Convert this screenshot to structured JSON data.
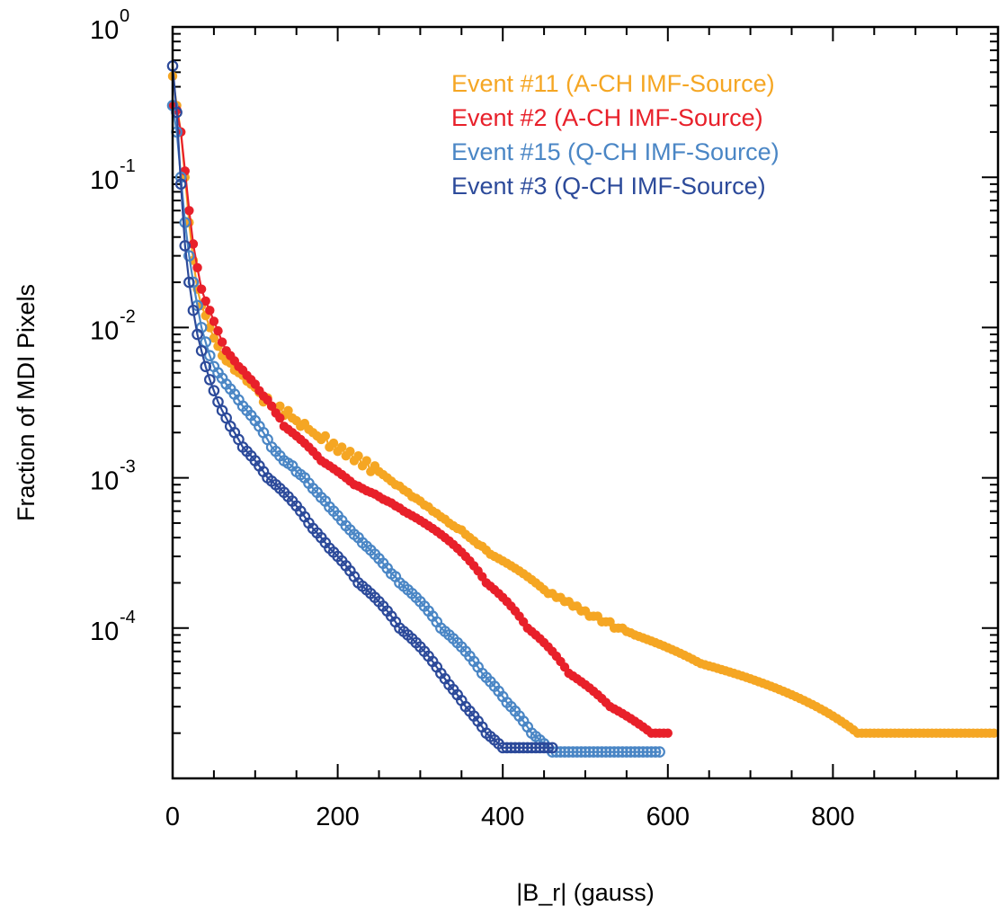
{
  "chart_data": {
    "type": "line",
    "title": "",
    "xlabel": "|B_r| (gauss)",
    "ylabel": "Fraction of MDI Pixels",
    "xlim": [
      0,
      1000
    ],
    "ylim": [
      1e-05,
      1
    ],
    "yscale": "log",
    "x_ticks": [
      "0",
      "200",
      "400",
      "600",
      "800"
    ],
    "y_ticks": [
      {
        "base": "10",
        "exp": "0"
      },
      {
        "base": "10",
        "exp": "-1"
      },
      {
        "base": "10",
        "exp": "-2"
      },
      {
        "base": "10",
        "exp": "-3"
      },
      {
        "base": "10",
        "exp": "-4"
      }
    ],
    "legend_position": "top-right",
    "series": [
      {
        "name": "Event #11 (A-CH IMF-Source)",
        "color": "#f5a623",
        "marker": "filled-circle",
        "x": [
          0,
          5,
          10,
          15,
          20,
          25,
          30,
          35,
          40,
          45,
          50,
          55,
          60,
          65,
          70,
          75,
          80,
          85,
          90,
          95,
          100,
          105,
          110,
          115,
          120,
          125,
          130,
          135,
          140,
          145,
          150,
          155,
          160,
          165,
          170,
          175,
          180,
          185,
          190,
          195,
          200,
          205,
          210,
          215,
          220,
          225,
          230,
          235,
          240,
          245,
          250,
          255,
          260,
          265,
          270,
          275,
          280,
          285,
          290,
          295,
          300,
          305,
          310,
          315,
          320,
          325,
          330,
          335,
          340,
          345,
          350,
          355,
          360,
          365,
          370,
          375,
          380,
          385,
          390,
          395,
          400,
          405,
          410,
          415,
          420,
          425,
          430,
          435,
          440,
          445,
          450,
          455,
          460,
          465,
          470,
          475,
          480,
          485,
          490,
          495,
          500,
          505,
          510,
          515,
          520,
          525,
          530,
          535,
          540,
          545,
          550,
          555,
          560,
          565,
          570,
          575,
          580,
          585,
          590,
          595,
          600,
          605,
          610,
          615,
          620,
          625,
          630,
          635,
          640,
          645,
          650,
          655,
          660,
          665,
          670,
          675,
          680,
          685,
          690,
          695,
          700,
          705,
          710,
          715,
          720,
          725,
          730,
          735,
          740,
          745,
          750,
          755,
          760,
          765,
          770,
          775,
          780,
          785,
          790,
          795,
          800,
          805,
          810,
          815,
          820,
          825,
          830,
          835,
          840,
          845,
          850,
          855,
          860,
          865,
          870,
          875,
          880,
          885,
          890,
          895,
          900,
          905,
          910,
          915,
          920,
          925,
          930,
          935,
          940,
          945,
          950,
          955,
          960,
          965,
          970,
          975,
          980,
          985,
          990,
          995
        ],
        "y": [
          0.47,
          0.3,
          0.2,
          0.1,
          0.05,
          0.028,
          0.018,
          0.014,
          0.012,
          0.01,
          0.0085,
          0.0075,
          0.0065,
          0.006,
          0.0058,
          0.0052,
          0.005,
          0.0048,
          0.0044,
          0.0042,
          0.004,
          0.0037,
          0.0032,
          0.0034,
          0.003,
          0.0028,
          0.003,
          0.0026,
          0.0028,
          0.0025,
          0.0024,
          0.0022,
          0.0023,
          0.0021,
          0.002,
          0.0019,
          0.0018,
          0.0019,
          0.0016,
          0.0017,
          0.0015,
          0.0016,
          0.0014,
          0.0015,
          0.0013,
          0.0014,
          0.0012,
          0.0013,
          0.0011,
          0.0012,
          0.0011,
          0.00105,
          0.001,
          0.00095,
          0.0009,
          0.00088,
          0.00083,
          0.0008,
          0.00075,
          0.00073,
          0.0007,
          0.00066,
          0.00064,
          0.0006,
          0.00058,
          0.00055,
          0.00053,
          0.0005,
          0.00048,
          0.00046,
          0.00045,
          0.00042,
          0.0004,
          0.00038,
          0.00036,
          0.00035,
          0.00033,
          0.00031,
          0.0003,
          0.00029,
          0.00028,
          0.00027,
          0.00026,
          0.00025,
          0.00024,
          0.00023,
          0.00022,
          0.00021,
          0.0002,
          0.00019,
          0.00018,
          0.00017,
          0.00017,
          0.00016,
          0.00016,
          0.00015,
          0.00015,
          0.00014,
          0.00014,
          0.00013,
          0.00013,
          0.00012,
          0.00012,
          0.00012,
          0.00011,
          0.00011,
          0.00011,
          0.0001,
          0.0001,
          0.0001,
          9.5e-05,
          9.3e-05,
          9e-05,
          8.8e-05,
          8.6e-05,
          8.4e-05,
          8.2e-05,
          8e-05,
          7.8e-05,
          7.6e-05,
          7.4e-05,
          7.2e-05,
          7e-05,
          6.8e-05,
          6.6e-05,
          6.4e-05,
          6.2e-05,
          6e-05,
          5.8e-05,
          5.7e-05,
          5.6e-05,
          5.5e-05,
          5.4e-05,
          5.3e-05,
          5.2e-05,
          5.1e-05,
          5e-05,
          4.9e-05,
          4.8e-05,
          4.7e-05,
          4.6e-05,
          4.5e-05,
          4.4e-05,
          4.3e-05,
          4.2e-05,
          4.1e-05,
          4e-05,
          3.9e-05,
          3.8e-05,
          3.7e-05,
          3.6e-05,
          3.5e-05,
          3.4e-05,
          3.3e-05,
          3.2e-05,
          3.1e-05,
          3e-05,
          2.9e-05,
          2.8e-05,
          2.7e-05,
          2.6e-05,
          2.5e-05,
          2.4e-05,
          2.3e-05,
          2.2e-05,
          2.1e-05,
          2e-05,
          2e-05,
          2e-05,
          2e-05,
          2e-05,
          2e-05,
          2e-05,
          2e-05,
          2e-05,
          2e-05,
          2e-05,
          2e-05,
          2e-05,
          2e-05,
          2e-05,
          2e-05,
          2e-05,
          2e-05,
          2e-05,
          2e-05,
          2e-05,
          2e-05,
          2e-05,
          2e-05,
          2e-05,
          2e-05,
          2e-05,
          2e-05,
          2e-05,
          2e-05,
          2e-05,
          2e-05,
          2e-05,
          2e-05
        ]
      },
      {
        "name": "Event #2 (A-CH IMF-Source)",
        "color": "#e8202a",
        "marker": "filled-circle",
        "x": [
          0,
          5,
          10,
          15,
          20,
          25,
          30,
          35,
          40,
          45,
          50,
          55,
          60,
          65,
          70,
          75,
          80,
          85,
          90,
          95,
          100,
          105,
          110,
          115,
          120,
          125,
          130,
          135,
          140,
          145,
          150,
          155,
          160,
          165,
          170,
          175,
          180,
          185,
          190,
          195,
          200,
          205,
          210,
          215,
          220,
          225,
          230,
          235,
          240,
          245,
          250,
          255,
          260,
          265,
          270,
          275,
          280,
          285,
          290,
          295,
          300,
          305,
          310,
          315,
          320,
          325,
          330,
          335,
          340,
          345,
          350,
          355,
          360,
          365,
          370,
          375,
          380,
          385,
          390,
          395,
          400,
          405,
          410,
          415,
          420,
          425,
          430,
          435,
          440,
          445,
          450,
          455,
          460,
          465,
          470,
          475,
          480,
          485,
          490,
          495,
          500,
          505,
          510,
          515,
          520,
          525,
          530,
          535,
          540,
          545,
          550,
          555,
          560,
          565,
          570,
          575,
          580,
          585,
          590,
          595,
          600
        ],
        "y": [
          0.3,
          0.28,
          0.2,
          0.11,
          0.06,
          0.036,
          0.025,
          0.018,
          0.015,
          0.013,
          0.011,
          0.0095,
          0.008,
          0.007,
          0.0065,
          0.006,
          0.0055,
          0.0052,
          0.0048,
          0.0045,
          0.0042,
          0.0038,
          0.0035,
          0.0033,
          0.003,
          0.0027,
          0.0025,
          0.0022,
          0.0021,
          0.002,
          0.0019,
          0.0018,
          0.0017,
          0.0016,
          0.0015,
          0.0014,
          0.0013,
          0.00125,
          0.0012,
          0.00115,
          0.0011,
          0.00105,
          0.001,
          0.00095,
          0.0009,
          0.00088,
          0.00085,
          0.00082,
          0.0008,
          0.00078,
          0.00075,
          0.00072,
          0.0007,
          0.00068,
          0.00065,
          0.00063,
          0.0006,
          0.00058,
          0.00056,
          0.00054,
          0.00052,
          0.0005,
          0.00048,
          0.00046,
          0.00044,
          0.00042,
          0.0004,
          0.00038,
          0.00036,
          0.00034,
          0.00032,
          0.0003,
          0.00028,
          0.00026,
          0.00024,
          0.00022,
          0.0002,
          0.00019,
          0.00018,
          0.00017,
          0.00016,
          0.00015,
          0.00014,
          0.00013,
          0.00012,
          0.00011,
          0.0001,
          9.5e-05,
          9e-05,
          8.5e-05,
          8e-05,
          7.5e-05,
          7e-05,
          6.5e-05,
          6e-05,
          5.5e-05,
          5e-05,
          4.8e-05,
          4.6e-05,
          4.4e-05,
          4.2e-05,
          4e-05,
          3.8e-05,
          3.6e-05,
          3.4e-05,
          3.2e-05,
          3e-05,
          2.9e-05,
          2.8e-05,
          2.7e-05,
          2.6e-05,
          2.5e-05,
          2.4e-05,
          2.3e-05,
          2.2e-05,
          2.1e-05,
          2e-05,
          2e-05,
          2e-05,
          2e-05,
          2e-05
        ]
      },
      {
        "name": "Event #15 (Q-CH IMF-Source)",
        "color": "#4a86c5",
        "marker": "open-circle",
        "x": [
          0,
          5,
          10,
          15,
          20,
          25,
          30,
          35,
          40,
          45,
          50,
          55,
          60,
          65,
          70,
          75,
          80,
          85,
          90,
          95,
          100,
          105,
          110,
          115,
          120,
          125,
          130,
          135,
          140,
          145,
          150,
          155,
          160,
          165,
          170,
          175,
          180,
          185,
          190,
          195,
          200,
          205,
          210,
          215,
          220,
          225,
          230,
          235,
          240,
          245,
          250,
          255,
          260,
          265,
          270,
          275,
          280,
          285,
          290,
          295,
          300,
          305,
          310,
          315,
          320,
          325,
          330,
          335,
          340,
          345,
          350,
          355,
          360,
          365,
          370,
          375,
          380,
          385,
          390,
          395,
          400,
          405,
          410,
          415,
          420,
          425,
          430,
          435,
          440,
          445,
          450,
          455,
          460,
          465,
          470,
          475,
          480,
          485,
          490,
          495,
          500,
          505,
          510,
          515,
          520,
          525,
          530,
          535,
          540,
          545,
          550,
          555,
          560,
          565,
          570,
          575,
          580,
          585,
          590
        ],
        "y": [
          0.3,
          0.2,
          0.1,
          0.05,
          0.03,
          0.02,
          0.014,
          0.01,
          0.008,
          0.0065,
          0.0055,
          0.005,
          0.0046,
          0.0042,
          0.0039,
          0.0036,
          0.0033,
          0.003,
          0.0028,
          0.0026,
          0.0024,
          0.0022,
          0.002,
          0.0018,
          0.0016,
          0.0015,
          0.0014,
          0.0013,
          0.00125,
          0.0012,
          0.0011,
          0.00105,
          0.001,
          0.00092,
          0.00085,
          0.0008,
          0.00074,
          0.0007,
          0.00064,
          0.0006,
          0.00056,
          0.00052,
          0.00048,
          0.00045,
          0.00042,
          0.0004,
          0.00037,
          0.00035,
          0.00033,
          0.00031,
          0.00029,
          0.00027,
          0.00025,
          0.00023,
          0.00022,
          0.0002,
          0.00019,
          0.00018,
          0.00017,
          0.00016,
          0.00015,
          0.00014,
          0.00013,
          0.00012,
          0.00011,
          0.0001,
          9.5e-05,
          9e-05,
          8.5e-05,
          8e-05,
          7.5e-05,
          7e-05,
          6.5e-05,
          6e-05,
          5.5e-05,
          5e-05,
          4.7e-05,
          4.4e-05,
          4.1e-05,
          3.8e-05,
          3.5e-05,
          3.2e-05,
          3e-05,
          2.8e-05,
          2.6e-05,
          2.4e-05,
          2.2e-05,
          2e-05,
          1.9e-05,
          1.8e-05,
          1.7e-05,
          1.6e-05,
          1.5e-05,
          1.5e-05,
          1.5e-05,
          1.5e-05,
          1.5e-05,
          1.5e-05,
          1.5e-05,
          1.5e-05,
          1.5e-05,
          1.5e-05,
          1.5e-05,
          1.5e-05,
          1.5e-05,
          1.5e-05,
          1.5e-05,
          1.5e-05,
          1.5e-05,
          1.5e-05,
          1.5e-05,
          1.5e-05,
          1.5e-05,
          1.5e-05,
          1.5e-05,
          1.5e-05,
          1.5e-05,
          1.5e-05,
          1.5e-05
        ]
      },
      {
        "name": "Event #3 (Q-CH IMF-Source)",
        "color": "#2c4a9a",
        "marker": "open-circle",
        "x": [
          0,
          5,
          10,
          15,
          20,
          25,
          30,
          35,
          40,
          45,
          50,
          55,
          60,
          65,
          70,
          75,
          80,
          85,
          90,
          95,
          100,
          105,
          110,
          115,
          120,
          125,
          130,
          135,
          140,
          145,
          150,
          155,
          160,
          165,
          170,
          175,
          180,
          185,
          190,
          195,
          200,
          205,
          210,
          215,
          220,
          225,
          230,
          235,
          240,
          245,
          250,
          255,
          260,
          265,
          270,
          275,
          280,
          285,
          290,
          295,
          300,
          305,
          310,
          315,
          320,
          325,
          330,
          335,
          340,
          345,
          350,
          355,
          360,
          365,
          370,
          375,
          380,
          385,
          390,
          395,
          400,
          405,
          410,
          415,
          420,
          425,
          430,
          435,
          440,
          445,
          450,
          455,
          460
        ],
        "y": [
          0.55,
          0.27,
          0.09,
          0.035,
          0.02,
          0.013,
          0.009,
          0.007,
          0.0055,
          0.0045,
          0.0038,
          0.0032,
          0.0028,
          0.0025,
          0.0022,
          0.002,
          0.0018,
          0.0016,
          0.0015,
          0.0014,
          0.0013,
          0.0012,
          0.0011,
          0.001,
          0.00095,
          0.0009,
          0.00085,
          0.0008,
          0.00075,
          0.0007,
          0.00065,
          0.0006,
          0.00055,
          0.0005,
          0.00046,
          0.00043,
          0.0004,
          0.00037,
          0.00034,
          0.00032,
          0.0003,
          0.00028,
          0.00026,
          0.00024,
          0.00022,
          0.0002,
          0.00019,
          0.00018,
          0.00017,
          0.00016,
          0.00015,
          0.00014,
          0.00013,
          0.00012,
          0.00011,
          0.0001,
          9.5e-05,
          9e-05,
          8.5e-05,
          8e-05,
          7.5e-05,
          7e-05,
          6.5e-05,
          6e-05,
          5.5e-05,
          5e-05,
          4.6e-05,
          4.2e-05,
          3.9e-05,
          3.6e-05,
          3.3e-05,
          3e-05,
          2.8e-05,
          2.6e-05,
          2.4e-05,
          2.2e-05,
          2e-05,
          1.9e-05,
          1.8e-05,
          1.7e-05,
          1.6e-05,
          1.6e-05,
          1.6e-05,
          1.6e-05,
          1.6e-05,
          1.6e-05,
          1.6e-05,
          1.6e-05,
          1.6e-05,
          1.6e-05,
          1.6e-05,
          1.6e-05,
          1.6e-05
        ]
      }
    ]
  }
}
